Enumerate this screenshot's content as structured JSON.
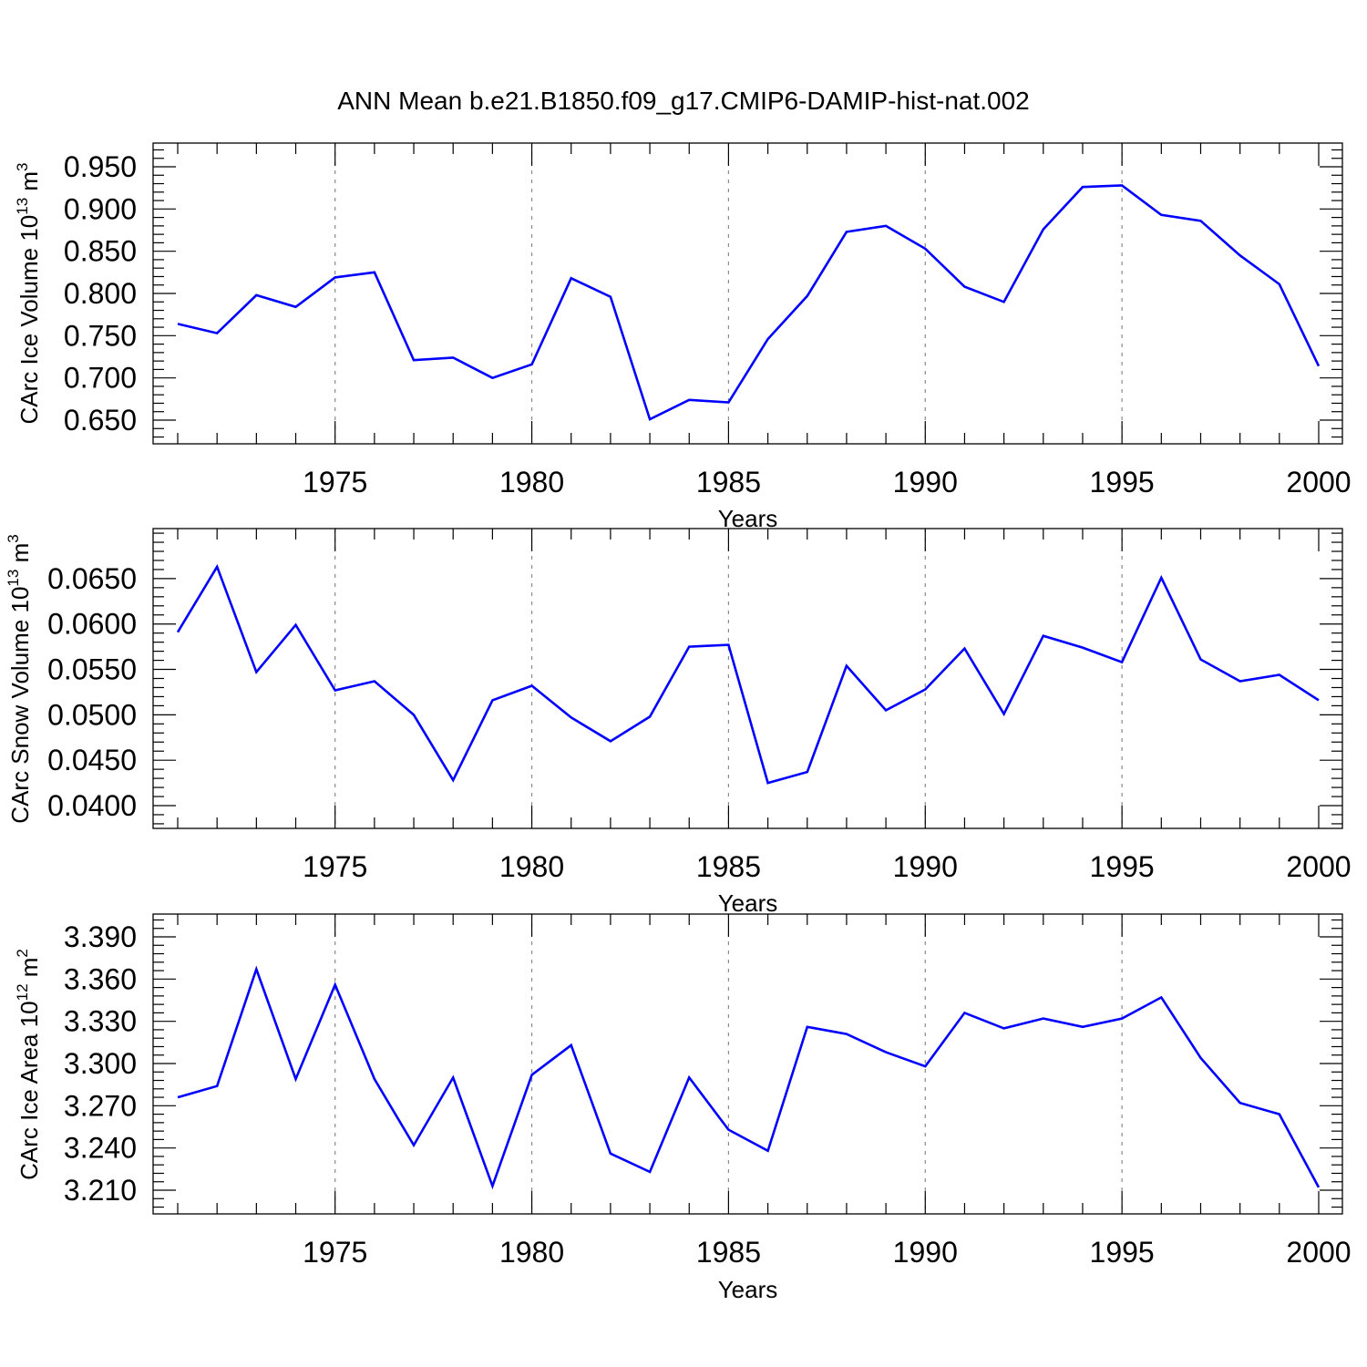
{
  "title": "ANN Mean b.e21.B1850.f09_g17.CMIP6-DAMIP-hist-nat.002",
  "colors": {
    "line": "#0000ff",
    "grid": "#8a8a8a",
    "axes": "#000000"
  },
  "chart_data": [
    {
      "type": "line",
      "ylabel": "CArc Ice Volume 10",
      "ylabel_exp": "13",
      "ylabel_unit": " m",
      "ylabel_unit_exp": "3",
      "xlabel": "Years",
      "xlim": [
        1971,
        2000
      ],
      "ylim": [
        0.65,
        0.95
      ],
      "yticks": [
        "0.650",
        "0.700",
        "0.750",
        "0.800",
        "0.850",
        "0.900",
        "0.950"
      ],
      "ytick_values": [
        0.65,
        0.7,
        0.75,
        0.8,
        0.85,
        0.9,
        0.95
      ],
      "xticks": [
        "1975",
        "1980",
        "1985",
        "1990",
        "1995",
        "2000"
      ],
      "xtick_values": [
        1975,
        1980,
        1985,
        1990,
        1995,
        2000
      ],
      "grid": "vertical dashed at major x ticks",
      "x": [
        1971,
        1972,
        1973,
        1974,
        1975,
        1976,
        1977,
        1978,
        1979,
        1980,
        1981,
        1982,
        1983,
        1984,
        1985,
        1986,
        1987,
        1988,
        1989,
        1990,
        1991,
        1992,
        1993,
        1994,
        1995,
        1996,
        1997,
        1998,
        1999,
        2000
      ],
      "values": [
        0.764,
        0.753,
        0.798,
        0.784,
        0.819,
        0.825,
        0.721,
        0.724,
        0.7,
        0.716,
        0.818,
        0.796,
        0.651,
        0.674,
        0.671,
        0.746,
        0.797,
        0.873,
        0.88,
        0.853,
        0.808,
        0.79,
        0.876,
        0.926,
        0.928,
        0.893,
        0.886,
        0.845,
        0.811,
        0.714
      ]
    },
    {
      "type": "line",
      "ylabel": "CArc Snow Volume 10",
      "ylabel_exp": "13",
      "ylabel_unit": " m",
      "ylabel_unit_exp": "3",
      "xlabel": "Years",
      "xlim": [
        1971,
        2000
      ],
      "ylim": [
        0.04,
        0.068
      ],
      "yticks": [
        "0.0400",
        "0.0450",
        "0.0500",
        "0.0550",
        "0.0600",
        "0.0650"
      ],
      "ytick_values": [
        0.04,
        0.045,
        0.05,
        0.055,
        0.06,
        0.065
      ],
      "xticks": [
        "1975",
        "1980",
        "1985",
        "1990",
        "1995",
        "2000"
      ],
      "xtick_values": [
        1975,
        1980,
        1985,
        1990,
        1995,
        2000
      ],
      "grid": "vertical dashed at major x ticks",
      "x": [
        1971,
        1972,
        1973,
        1974,
        1975,
        1976,
        1977,
        1978,
        1979,
        1980,
        1981,
        1982,
        1983,
        1984,
        1985,
        1986,
        1987,
        1988,
        1989,
        1990,
        1991,
        1992,
        1993,
        1994,
        1995,
        1996,
        1997,
        1998,
        1999,
        2000
      ],
      "values": [
        0.0591,
        0.0663,
        0.0547,
        0.0599,
        0.0527,
        0.0537,
        0.05,
        0.0428,
        0.0516,
        0.0532,
        0.0497,
        0.0471,
        0.0498,
        0.0575,
        0.0577,
        0.0425,
        0.0437,
        0.0554,
        0.0505,
        0.0528,
        0.0573,
        0.0501,
        0.0587,
        0.0574,
        0.0558,
        0.0651,
        0.0561,
        0.0537,
        0.0544,
        0.0516
      ]
    },
    {
      "type": "line",
      "ylabel": "CArc Ice Area 10",
      "ylabel_exp": "12",
      "ylabel_unit": " m",
      "ylabel_unit_exp": "2",
      "xlabel": "Years",
      "xlim": [
        1971,
        2000
      ],
      "ylim": [
        3.21,
        3.39
      ],
      "yticks": [
        "3.210",
        "3.240",
        "3.270",
        "3.300",
        "3.330",
        "3.360",
        "3.390"
      ],
      "ytick_values": [
        3.21,
        3.24,
        3.27,
        3.3,
        3.33,
        3.36,
        3.39
      ],
      "xticks": [
        "1975",
        "1980",
        "1985",
        "1990",
        "1995",
        "2000"
      ],
      "xtick_values": [
        1975,
        1980,
        1985,
        1990,
        1995,
        2000
      ],
      "grid": "vertical dashed at major x ticks",
      "x": [
        1971,
        1972,
        1973,
        1974,
        1975,
        1976,
        1977,
        1978,
        1979,
        1980,
        1981,
        1982,
        1983,
        1984,
        1985,
        1986,
        1987,
        1988,
        1989,
        1990,
        1991,
        1992,
        1993,
        1994,
        1995,
        1996,
        1997,
        1998,
        1999,
        2000
      ],
      "values": [
        3.276,
        3.284,
        3.367,
        3.289,
        3.356,
        3.289,
        3.242,
        3.29,
        3.213,
        3.292,
        3.313,
        3.236,
        3.223,
        3.29,
        3.253,
        3.238,
        3.326,
        3.321,
        3.308,
        3.298,
        3.336,
        3.325,
        3.332,
        3.326,
        3.332,
        3.347,
        3.304,
        3.272,
        3.264,
        3.212
      ]
    }
  ]
}
